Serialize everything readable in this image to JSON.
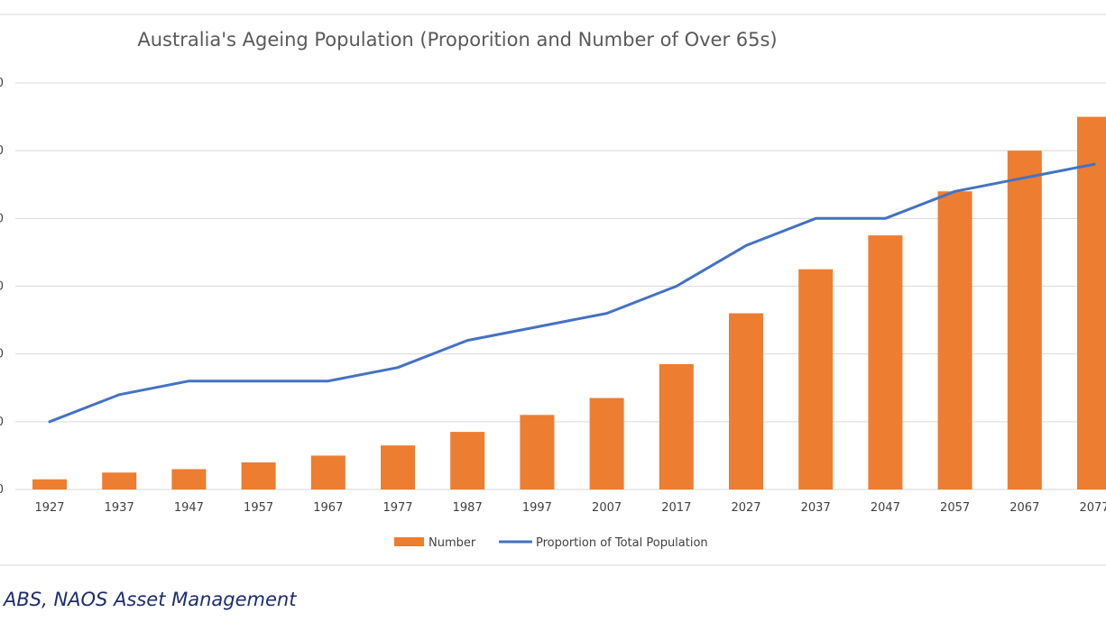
{
  "chart_data": {
    "type": "bar",
    "title": "Australia's Ageing Population (Proporition and Number of Over 65s)",
    "categories": [
      "1927",
      "1937",
      "1947",
      "1957",
      "1967",
      "1977",
      "1987",
      "1997",
      "2007",
      "2017",
      "2027",
      "2037",
      "2047",
      "2057",
      "2067",
      "2077"
    ],
    "series": [
      {
        "name": "Number",
        "type": "bar",
        "color": "#ED7D31",
        "values": [
          0.3,
          0.5,
          0.6,
          0.8,
          1.0,
          1.3,
          1.7,
          2.2,
          2.7,
          3.7,
          5.2,
          6.5,
          7.5,
          8.8,
          10.0,
          11.0
        ]
      },
      {
        "name": "Proportion of Total Population",
        "type": "line",
        "color": "#4472C4",
        "values": [
          2.0,
          2.8,
          3.2,
          3.2,
          3.2,
          3.6,
          4.4,
          4.8,
          5.2,
          6.0,
          7.2,
          8.0,
          8.0,
          8.8,
          9.2,
          9.6
        ]
      }
    ],
    "ylim": [
      0,
      12
    ],
    "yticks": [
      0,
      2,
      4,
      6,
      8,
      10,
      12
    ],
    "ytick_labels": [
      "0",
      "0",
      "0",
      "0",
      "0",
      "0",
      "0"
    ],
    "grid": true,
    "legend": "bottom"
  },
  "legend": {
    "number_label": "Number",
    "proportion_label": "Proportion of Total Population"
  },
  "source": "ABS, NAOS Asset Management"
}
